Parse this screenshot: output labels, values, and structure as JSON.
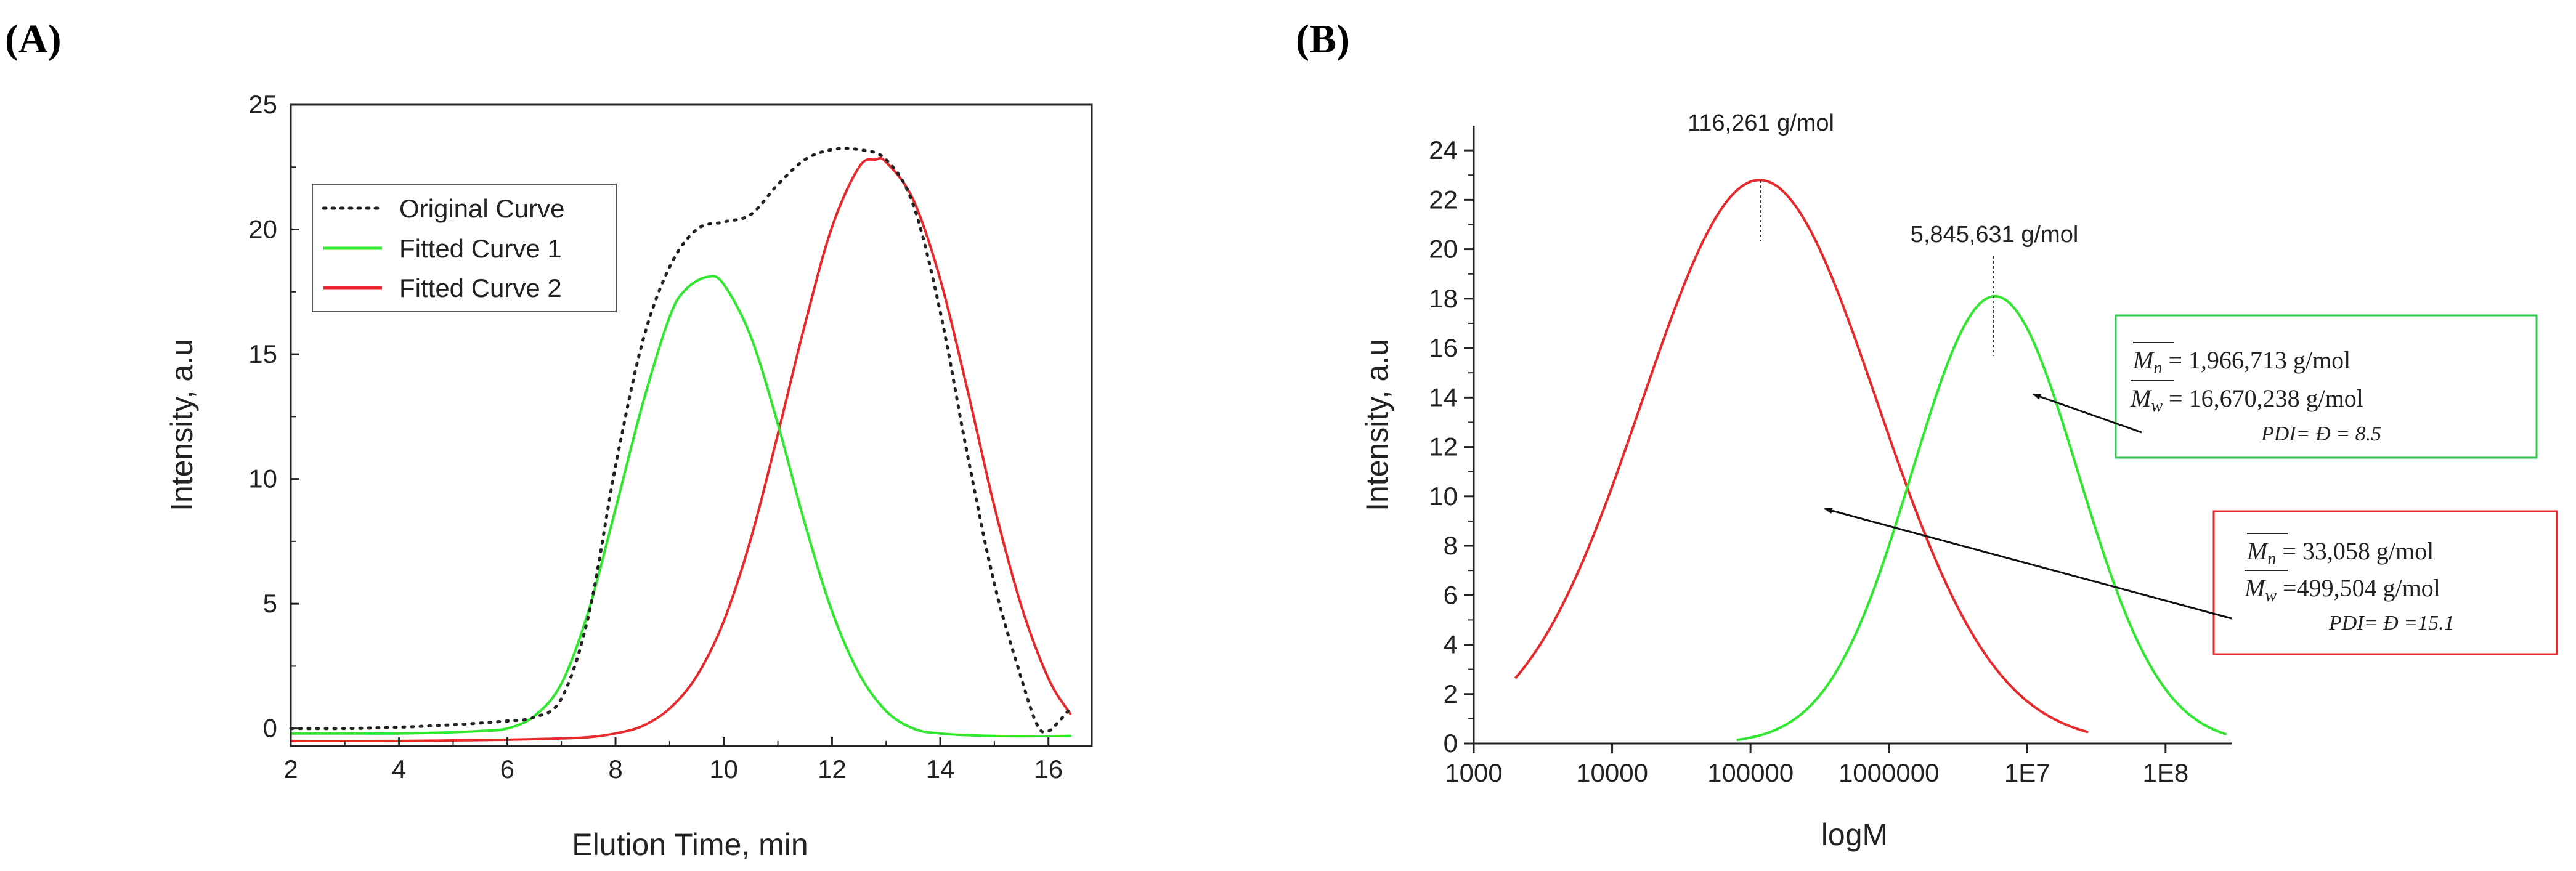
{
  "colors": {
    "green": "#2ee82e",
    "red": "#e8282a",
    "black": "#222222"
  },
  "chart_data": [
    {
      "panel_label": "(A)",
      "type": "line",
      "xlabel": "Elution Time, min",
      "ylabel": "Intensity, a.u",
      "xlim": [
        2,
        16.8
      ],
      "ylim": [
        -0.7,
        25
      ],
      "x_ticks": [
        "2",
        "4",
        "6",
        "8",
        "10",
        "12",
        "14",
        "16"
      ],
      "y_ticks": [
        "0",
        "5",
        "10",
        "15",
        "20",
        "25"
      ],
      "legend": [
        "Original Curve",
        "Fitted Curve 1",
        "Fitted Curve 2"
      ],
      "series": [
        {
          "name": "Original Curve",
          "style": "dotted",
          "x": [
            2,
            3,
            4,
            5,
            6,
            6.5,
            7,
            7.5,
            8,
            8.5,
            9,
            9.5,
            10,
            10.5,
            11,
            11.5,
            12,
            12.5,
            13,
            13.5,
            14,
            14.5,
            15,
            15.5,
            15.8,
            16,
            16.2,
            16.4
          ],
          "y": [
            0,
            0,
            0.05,
            0.15,
            0.3,
            0.45,
            1.2,
            4.5,
            10.5,
            15.5,
            18.5,
            20.0,
            20.3,
            20.6,
            21.8,
            22.8,
            23.2,
            23.2,
            22.8,
            21.0,
            16.7,
            11.0,
            5.8,
            2.0,
            0.1,
            -0.1,
            0.3,
            0.8
          ]
        },
        {
          "name": "Fitted Curve 1",
          "style": "solid",
          "x": [
            2,
            3,
            4,
            5,
            5.5,
            6,
            6.5,
            7,
            7.5,
            8,
            8.5,
            9,
            9.3,
            9.7,
            10,
            10.5,
            11,
            11.5,
            12,
            12.5,
            13,
            13.5,
            14,
            15,
            16.4
          ],
          "y": [
            -0.2,
            -0.2,
            -0.2,
            -0.15,
            -0.1,
            0.0,
            0.5,
            1.8,
            4.7,
            8.8,
            13.0,
            16.5,
            17.6,
            18.1,
            17.8,
            15.7,
            12.2,
            8.2,
            4.7,
            2.2,
            0.7,
            0.0,
            -0.2,
            -0.3,
            -0.3
          ]
        },
        {
          "name": "Fitted Curve 2",
          "style": "solid",
          "x": [
            2,
            4,
            6,
            7,
            7.5,
            8,
            8.5,
            9,
            9.5,
            10,
            10.5,
            11,
            11.5,
            12,
            12.5,
            12.8,
            13,
            13.5,
            14,
            14.5,
            15,
            15.5,
            16,
            16.4
          ],
          "y": [
            -0.5,
            -0.5,
            -0.45,
            -0.4,
            -0.35,
            -0.2,
            0.1,
            0.8,
            2.1,
            4.3,
            7.6,
            11.8,
            16.2,
            20.1,
            22.5,
            22.8,
            22.7,
            21.2,
            18.0,
            13.6,
            8.9,
            4.9,
            2.0,
            0.6
          ]
        }
      ]
    },
    {
      "panel_label": "(B)",
      "type": "line",
      "xlabel": "logM",
      "ylabel": "Intensity, a.u",
      "x_scale": "log",
      "xlim": [
        1000,
        300000000
      ],
      "ylim": [
        0,
        25
      ],
      "x_ticks": [
        {
          "value": 1000,
          "label": "1000"
        },
        {
          "value": 10000,
          "label": "10000"
        },
        {
          "value": 100000,
          "label": "100000"
        },
        {
          "value": 1000000,
          "label": "1000000"
        },
        {
          "value": 10000000,
          "label": "1E7"
        },
        {
          "value": 100000000,
          "label": "1E8"
        }
      ],
      "y_ticks": [
        "0",
        "2",
        "4",
        "6",
        "8",
        "10",
        "12",
        "14",
        "16",
        "18",
        "20",
        "22",
        "24"
      ],
      "series": [
        {
          "name": "red",
          "peak_logM": 5.065,
          "peak_height": 22.8,
          "sigma_logM": 0.85,
          "logM_range": [
            3.3,
            7.45
          ]
        },
        {
          "name": "green",
          "peak_logM": 6.767,
          "peak_height": 18.1,
          "sigma_logM": 0.6,
          "logM_range": [
            4.9,
            8.45
          ]
        }
      ],
      "annotations": {
        "peak1": "116,261 g/mol",
        "peak2": "5,845,631 g/mol",
        "green_box": {
          "mn_label": "M",
          "mn_sub": "n",
          "mn_value": " = 1,966,713 g/mol",
          "mw_label": "M",
          "mw_sub": "w",
          "mw_value": " = 16,670,238 g/mol",
          "pdi": "PDI= Đ = 8.5"
        },
        "red_box": {
          "mn_label": "M",
          "mn_sub": "n",
          "mn_value": " = 33,058 g/mol",
          "mw_label": "M",
          "mw_sub": "w",
          "mw_value": " =499,504 g/mol",
          "pdi": "PDI= Đ =15.1"
        }
      }
    }
  ]
}
